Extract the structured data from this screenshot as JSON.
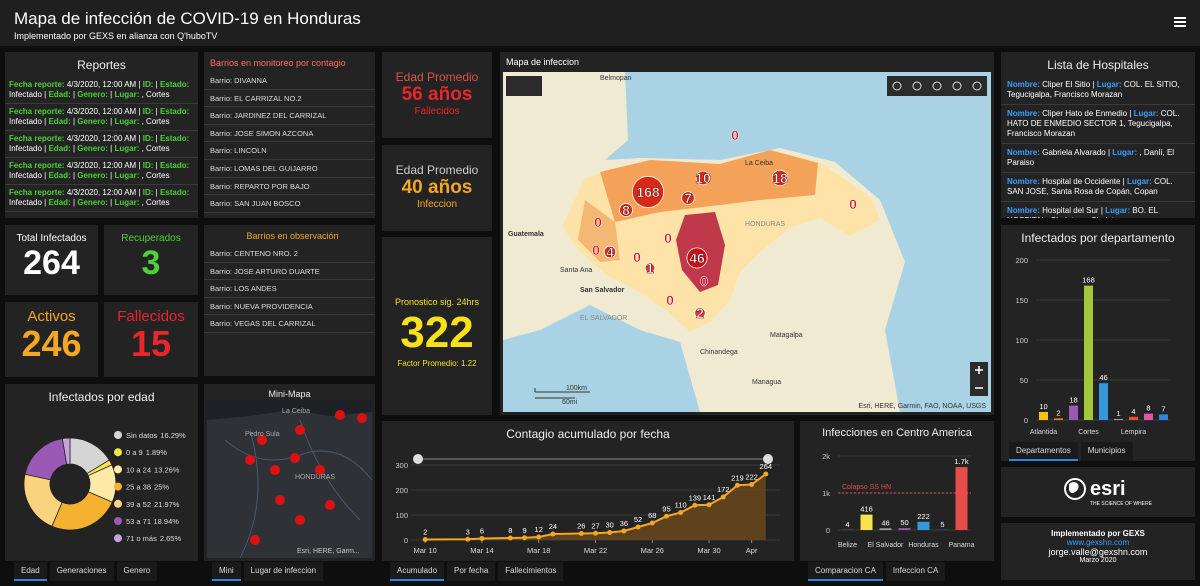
{
  "header": {
    "title": "Mapa de infección de COVID-19 en Honduras",
    "subtitle": "Implementado por GEXS en alianza con Q'huboTV"
  },
  "reportes": {
    "title": "Reportes",
    "labels": {
      "fecha": "Fecha reporte:",
      "id": "ID:",
      "estado": "Estado:",
      "edad": "Edad:",
      "genero": "Genero:",
      "lugar": "Lugar:",
      "separator": "|"
    },
    "rows": [
      {
        "fecha": "4/3/2020, 12:00 AM",
        "estado": "Infectado",
        "lugar": ", Cortes"
      },
      {
        "fecha": "4/3/2020, 12:00 AM",
        "estado": "Infectado",
        "lugar": ", Cortes"
      },
      {
        "fecha": "4/3/2020, 12:00 AM",
        "estado": "Infectado",
        "lugar": ", Cortes"
      },
      {
        "fecha": "4/3/2020, 12:00 AM",
        "estado": "Infectado",
        "lugar": ", Cortes"
      },
      {
        "fecha": "4/3/2020, 12:00 AM",
        "estado": "Infectado",
        "lugar": ", Cortes"
      }
    ]
  },
  "barrios_monitoreo": {
    "title": "Barrios en monitoreo por contagio",
    "items": [
      "Barrio: DIVANNA",
      "Barrio: EL CARRIZAL NO.2",
      "Barrio: JARDINEZ DEL CARRIZAL",
      "Barrio: JOSE SIMON AZCONA",
      "Barrio: LINCOLN",
      "Barrio: LOMAS DEL GUIJARRO",
      "Barrio: REPARTO POR BAJO",
      "Barrio: SAN JUAN BOSCO"
    ]
  },
  "barrios_observacion": {
    "title": "Barrios en observación",
    "items": [
      "Barrio: CENTENO NRO. 2",
      "Barrio: JOSE ARTURO DUARTE",
      "Barrio: LOS ANDES",
      "Barrio: NUEVA PROVIDENCIA",
      "Barrio: VEGAS DEL CARRIZAL"
    ]
  },
  "stats": [
    {
      "label": "Total Infectados",
      "value": 264,
      "label_color": "#ffffff",
      "color": "#ffffff"
    },
    {
      "label": "Recuperados",
      "value": 3,
      "label_color": "#4cd137",
      "color": "#4cd137"
    },
    {
      "label": "Activos",
      "value": 246,
      "label_color": "#f5a623",
      "color": "#f5a623"
    },
    {
      "label": "Fallecidos",
      "value": 15,
      "label_color": "#e8262b",
      "color": "#e8262b"
    }
  ],
  "edad_promedio": [
    {
      "label": "Edad Promedio",
      "value": "56 años",
      "caption": "Fallecidos",
      "label_color": "#d9534f",
      "color": "#e8262b"
    },
    {
      "label": "Edad Promedio",
      "value": "40 años",
      "caption": "Infeccion",
      "label_color": "#cccccc",
      "color": "#f5a623"
    }
  ],
  "pronostico": {
    "label": "Pronostico sig. 24hrs",
    "value": 322,
    "factor": "Factor Promedio: 1.22",
    "color": "#f7e11b"
  },
  "map": {
    "title": "Mapa de infeccion",
    "counts": [
      168,
      8,
      7,
      10,
      18,
      0,
      0,
      0,
      4,
      0,
      0,
      1,
      46,
      0,
      0,
      2,
      0
    ],
    "places": [
      "Belmopan",
      "La Ceiba",
      "Guatemala",
      "Santa Ana",
      "San Salvador",
      "EL SALVADOR",
      "HONDURAS",
      "Matagalpa",
      "Chinandega",
      "Managua"
    ],
    "scale": [
      "100km",
      "60mi"
    ],
    "attribution": "Esri, HERE, Garmin, FAO, NOAA, USGS"
  },
  "hospitales": {
    "title": "Lista de Hospitales",
    "labels": {
      "nombre": "Nombre:",
      "lugar": "Lugar:",
      "separator": "|"
    },
    "items": [
      {
        "nombre": "Cliper El Sitio",
        "lugar": "COL. EL SITIO, Tegucigalpa, Francisco Morazan"
      },
      {
        "nombre": "Cliper Hato de Enmedio",
        "lugar": "COL. HATO DE ENMEDIO SECTOR 1, Tegucigalpa, Francisco Morazan"
      },
      {
        "nombre": "Gabriela Alvarado",
        "lugar": ", Danlí, El Paraiso"
      },
      {
        "nombre": "Hospital de Occidente",
        "lugar": "COL. SAN JOSE, Santa Rosa de Copán, Copan"
      },
      {
        "nombre": "Hospital del Sur",
        "lugar": "BO. EL HOSPITAL, Choluteca, Choluteca"
      }
    ]
  },
  "minimapa": {
    "title": "Mini-Mapa",
    "places": [
      "La Ceiba",
      "Pedro Sula",
      "HONDURAS"
    ],
    "attribution": "Esri, HERE, Garm..."
  },
  "tabs": {
    "departamentos": [
      "Departamentos",
      "Municipios"
    ],
    "edad": [
      "Edad",
      "Generaciones",
      "Genero"
    ],
    "minimapa": [
      "Mini",
      "Lugar de infeccion"
    ],
    "contagio": [
      "Acumulado",
      "Por fecha",
      "Fallecimientos"
    ],
    "ca": [
      "Comparacion CA",
      "Infeccion CA"
    ]
  },
  "esri": {
    "name": "esri",
    "tagline": "THE SCIENCE OF WHERE"
  },
  "footer": {
    "credit": "Implementado por GEXS",
    "website": "www.gexshn.com",
    "email": "jorge.valle@gexshn.com",
    "date": "Marzo 2020"
  },
  "chart_data": [
    {
      "type": "bar",
      "title": "Infectados por departamento",
      "categories": [
        "Atlantida",
        null,
        null,
        "Cortes",
        null,
        null,
        "Lempira",
        null,
        null
      ],
      "values": [
        10,
        2,
        18,
        168,
        46,
        1,
        4,
        8,
        7
      ],
      "colors": [
        "#f1c40f",
        "#e67e22",
        "#9b59b6",
        "#a4c639",
        "#3498db",
        "#bdc3c7",
        "#e74c3c",
        "#e056a0",
        "#2e86de"
      ],
      "ylim": [
        0,
        200
      ],
      "yticks": [
        0,
        50,
        100,
        150,
        200
      ]
    },
    {
      "type": "pie",
      "title": "Infectados por edad",
      "categories": [
        "Sin datos",
        "0 a 9",
        "10 a 24",
        "25 a 38",
        "39 a 52",
        "53 a 71",
        "71 o más"
      ],
      "values": [
        16.29,
        1.89,
        13.26,
        25,
        21.97,
        18.94,
        2.65
      ],
      "value_labels": [
        "16.29%",
        "1.89%",
        "13.26%",
        "25%",
        "21.97%",
        "18.94%",
        "2.65%"
      ],
      "colors": [
        "#d5d5d5",
        "#f7e34a",
        "#fdeaa8",
        "#f5b230",
        "#fbd27e",
        "#9b59b6",
        "#c8a2d8"
      ]
    },
    {
      "type": "line",
      "title": "Contagio acumulado por fecha",
      "x": [
        "Mar 10",
        "Mar 13",
        "Mar 14",
        "Mar 16",
        "Mar 17",
        "Mar 18",
        "Mar 19",
        "Mar 21",
        "Mar 22",
        "Mar 23",
        "Mar 24",
        "Mar 25",
        "Mar 26",
        "Mar 27",
        "Mar 28",
        "Mar 29",
        "Mar 30",
        "Mar 31",
        "Apr 1",
        "Apr 2",
        "Apr 3"
      ],
      "values": [
        2,
        3,
        6,
        8,
        9,
        12,
        24,
        26,
        27,
        30,
        36,
        52,
        68,
        95,
        110,
        139,
        141,
        172,
        219,
        222,
        264
      ],
      "xlim": [
        "Mar 9",
        "Apr 4"
      ],
      "xticks": [
        "Mar 10",
        "Mar 14",
        "Mar 18",
        "Mar 22",
        "Mar 26",
        "Mar 30",
        {
          "value": "Apr 2",
          "label": "Apr"
        }
      ],
      "ylim": [
        0,
        300
      ],
      "yticks": [
        0,
        100,
        200,
        300
      ],
      "color": "#f5a623"
    },
    {
      "type": "bar",
      "title": "Infecciones en Centro America",
      "categories": [
        "Belize",
        null,
        "El Salvador",
        null,
        "Honduras",
        null,
        "Panama"
      ],
      "values": [
        4,
        416,
        46,
        50,
        222,
        5,
        1700
      ],
      "value_labels": [
        "4",
        "416",
        "46",
        "50",
        "222",
        "5",
        "1.7k"
      ],
      "colors": [
        "#9e9e9e",
        "#f7e34a",
        "#9e9e9e",
        "#9b59b6",
        "#3498db",
        "#2e86de",
        "#e74c4c"
      ],
      "reference": {
        "label": "Colapso SS HN",
        "value": 1000
      },
      "ylim": [
        0,
        2000
      ],
      "yticks": [
        0,
        {
          "value": 1000,
          "label": "1k"
        },
        {
          "value": 2000,
          "label": "2k"
        }
      ]
    }
  ]
}
